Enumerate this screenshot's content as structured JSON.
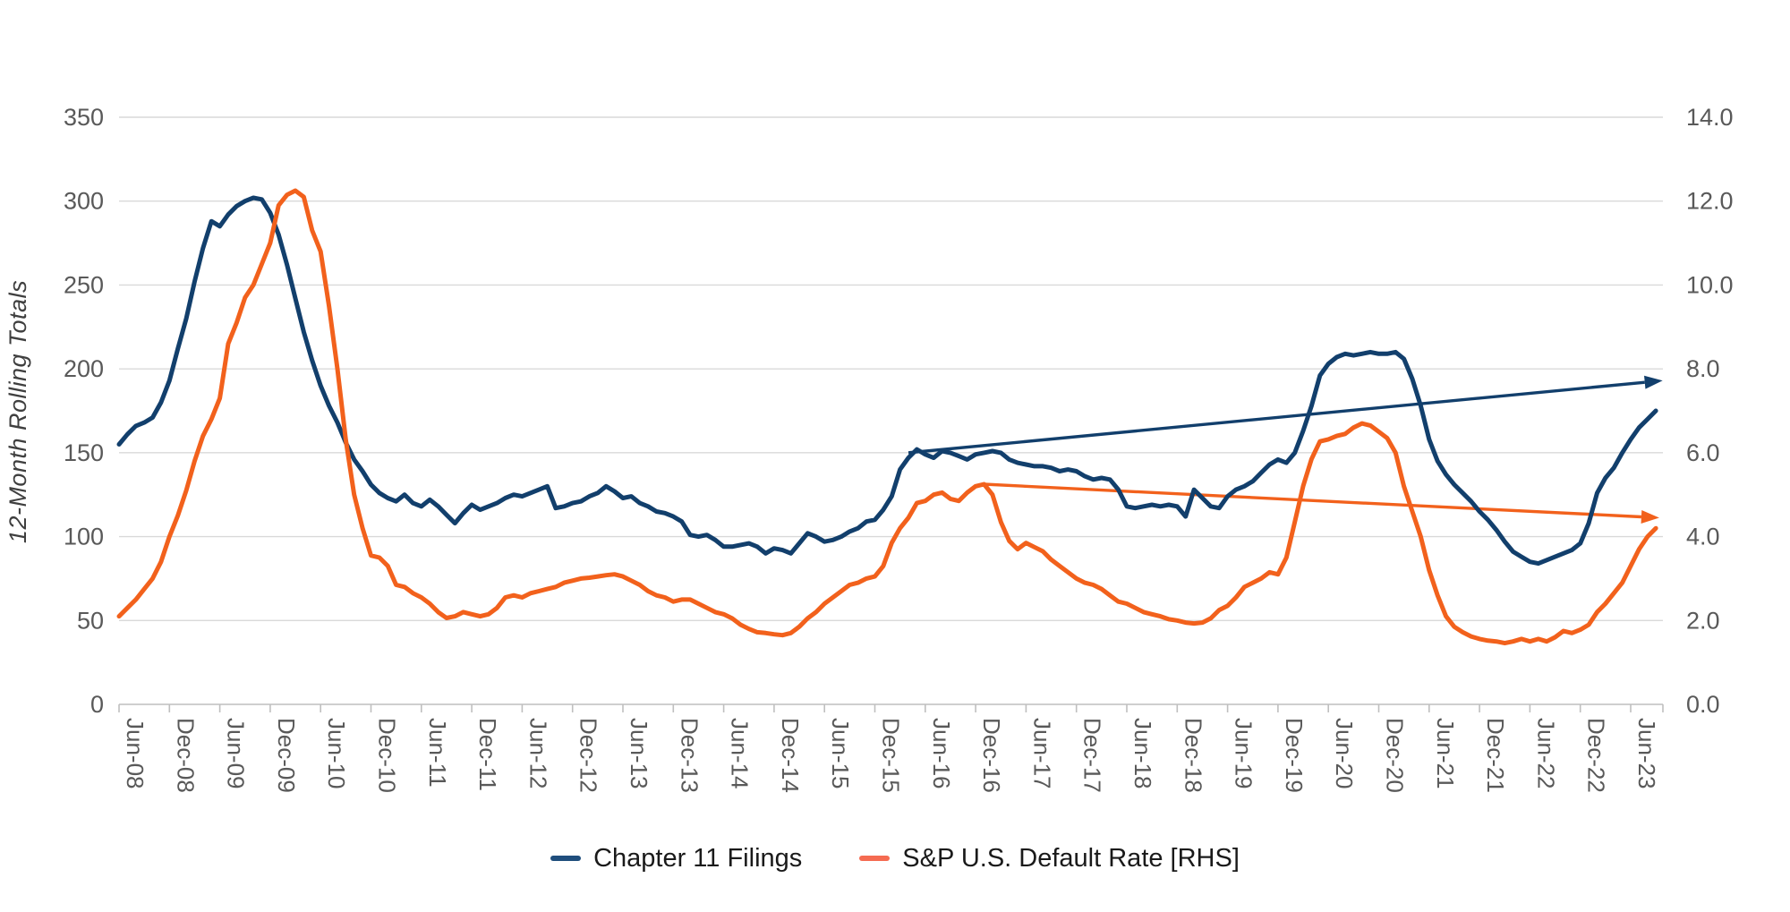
{
  "chart_data": {
    "type": "line",
    "title": "",
    "ylabel": "12-Month Rolling Totals",
    "x_start_label": "Jun-08",
    "x_tick_labels": [
      "Jun-08",
      "Dec-08",
      "Jun-09",
      "Dec-09",
      "Jun-10",
      "Dec-10",
      "Jun-11",
      "Dec-11",
      "Jun-12",
      "Dec-12",
      "Jun-13",
      "Dec-13",
      "Jun-14",
      "Dec-14",
      "Jun-15",
      "Dec-15",
      "Jun-16",
      "Dec-16",
      "Jun-17",
      "Dec-17",
      "Jun-18",
      "Dec-18",
      "Jun-19",
      "Dec-19",
      "Jun-20",
      "Dec-20",
      "Jun-21",
      "Dec-21",
      "Jun-22",
      "Dec-22",
      "Jun-23"
    ],
    "left_axis": {
      "min": 0,
      "max": 350,
      "step": 50,
      "tick_labels": [
        "0",
        "50",
        "100",
        "150",
        "200",
        "250",
        "300",
        "350"
      ]
    },
    "right_axis": {
      "min": 0,
      "max": 14,
      "step": 2,
      "tick_labels": [
        "0.0",
        "2.0",
        "4.0",
        "6.0",
        "8.0",
        "10.0",
        "12.0",
        "14.0"
      ]
    },
    "grid": true,
    "legend_position": "bottom",
    "series": [
      {
        "name": "Chapter 11 Filings",
        "axis": "left",
        "color": "#123f6c",
        "legend_swatch_color": "#1f4e7d",
        "values": [
          155,
          161,
          166,
          168,
          171,
          180,
          193,
          212,
          230,
          252,
          272,
          288,
          285,
          292,
          297,
          300,
          302,
          301,
          293,
          280,
          262,
          242,
          222,
          205,
          190,
          178,
          168,
          156,
          146,
          139,
          131,
          126,
          123,
          121,
          125,
          120,
          118,
          122,
          118,
          113,
          108,
          114,
          119,
          116,
          118,
          120,
          123,
          125,
          124,
          126,
          128,
          130,
          117,
          118,
          120,
          121,
          124,
          126,
          130,
          127,
          123,
          124,
          120,
          118,
          115,
          114,
          112,
          109,
          101,
          100,
          101,
          98,
          94,
          94,
          95,
          96,
          94,
          90,
          93,
          92,
          90,
          96,
          102,
          100,
          97,
          98,
          100,
          103,
          105,
          109,
          110,
          116,
          124,
          140,
          147,
          152,
          149,
          147,
          151,
          150,
          148,
          146,
          149,
          150,
          151,
          150,
          146,
          144,
          143,
          142,
          142,
          141,
          139,
          140,
          139,
          136,
          134,
          135,
          134,
          128,
          118,
          117,
          118,
          119,
          118,
          119,
          118,
          112,
          128,
          123,
          118,
          117,
          124,
          128,
          130,
          133,
          138,
          143,
          146,
          144,
          150,
          163,
          178,
          196,
          203,
          207,
          209,
          208,
          209,
          210,
          209,
          209,
          210,
          206,
          194,
          178,
          158,
          145,
          137,
          131,
          126,
          121,
          115,
          110,
          104,
          97,
          91,
          88,
          85,
          84,
          86,
          88,
          90,
          92,
          96,
          108,
          126,
          135,
          141,
          150,
          158,
          165,
          170,
          175
        ]
      },
      {
        "name": "S&P U.S. Default Rate [RHS]",
        "axis": "right",
        "color": "#f2611c",
        "legend_swatch_color": "#f56b51",
        "values": [
          2.1,
          2.3,
          2.5,
          2.75,
          3.0,
          3.4,
          4.0,
          4.5,
          5.1,
          5.8,
          6.4,
          6.8,
          7.3,
          8.6,
          9.1,
          9.7,
          10.0,
          10.5,
          11.0,
          11.9,
          12.15,
          12.25,
          12.1,
          11.3,
          10.8,
          9.5,
          8.0,
          6.3,
          5.0,
          4.2,
          3.55,
          3.5,
          3.3,
          2.85,
          2.8,
          2.65,
          2.55,
          2.4,
          2.2,
          2.06,
          2.1,
          2.2,
          2.15,
          2.1,
          2.15,
          2.3,
          2.55,
          2.6,
          2.55,
          2.65,
          2.7,
          2.75,
          2.8,
          2.9,
          2.95,
          3.0,
          3.02,
          3.05,
          3.08,
          3.1,
          3.05,
          2.95,
          2.85,
          2.7,
          2.6,
          2.55,
          2.45,
          2.5,
          2.5,
          2.4,
          2.3,
          2.2,
          2.15,
          2.05,
          1.9,
          1.8,
          1.72,
          1.7,
          1.67,
          1.65,
          1.7,
          1.85,
          2.05,
          2.2,
          2.4,
          2.55,
          2.7,
          2.85,
          2.9,
          3.0,
          3.05,
          3.3,
          3.85,
          4.2,
          4.45,
          4.8,
          4.85,
          5.0,
          5.05,
          4.9,
          4.85,
          5.05,
          5.2,
          5.25,
          5.0,
          4.35,
          3.9,
          3.7,
          3.85,
          3.75,
          3.65,
          3.45,
          3.3,
          3.15,
          3.0,
          2.9,
          2.85,
          2.75,
          2.6,
          2.45,
          2.4,
          2.3,
          2.2,
          2.15,
          2.1,
          2.03,
          2.0,
          1.95,
          1.93,
          1.95,
          2.05,
          2.25,
          2.35,
          2.55,
          2.8,
          2.9,
          3.0,
          3.15,
          3.1,
          3.5,
          4.35,
          5.2,
          5.85,
          6.27,
          6.32,
          6.4,
          6.45,
          6.6,
          6.7,
          6.65,
          6.5,
          6.35,
          6.0,
          5.2,
          4.6,
          4.0,
          3.2,
          2.6,
          2.1,
          1.85,
          1.72,
          1.62,
          1.56,
          1.52,
          1.5,
          1.46,
          1.5,
          1.56,
          1.5,
          1.56,
          1.5,
          1.6,
          1.75,
          1.7,
          1.78,
          1.9,
          2.2,
          2.4,
          2.65,
          2.9,
          3.3,
          3.7,
          4.0,
          4.2
        ]
      }
    ],
    "trend_arrows": [
      {
        "series": "Chapter 11 Filings",
        "axis": "left",
        "color": "#123f6c",
        "from_month": 94,
        "from_value": 150,
        "to_month": 183.8,
        "to_value": 193
      },
      {
        "series": "S&P U.S. Default Rate [RHS]",
        "axis": "right",
        "color": "#f2611c",
        "from_month": 103,
        "from_value": 5.25,
        "to_month": 183.4,
        "to_value": 4.45
      }
    ],
    "legend": [
      {
        "label": "Chapter 11 Filings"
      },
      {
        "label": "S&P U.S. Default Rate [RHS]"
      }
    ]
  },
  "colors": {
    "grid": "#d9d9d9",
    "axis_line": "#bfbfbf",
    "axis_text": "#595959",
    "ylabel_text": "#3f3f3f",
    "legend_text": "#1a1a1a",
    "background": "#ffffff"
  }
}
